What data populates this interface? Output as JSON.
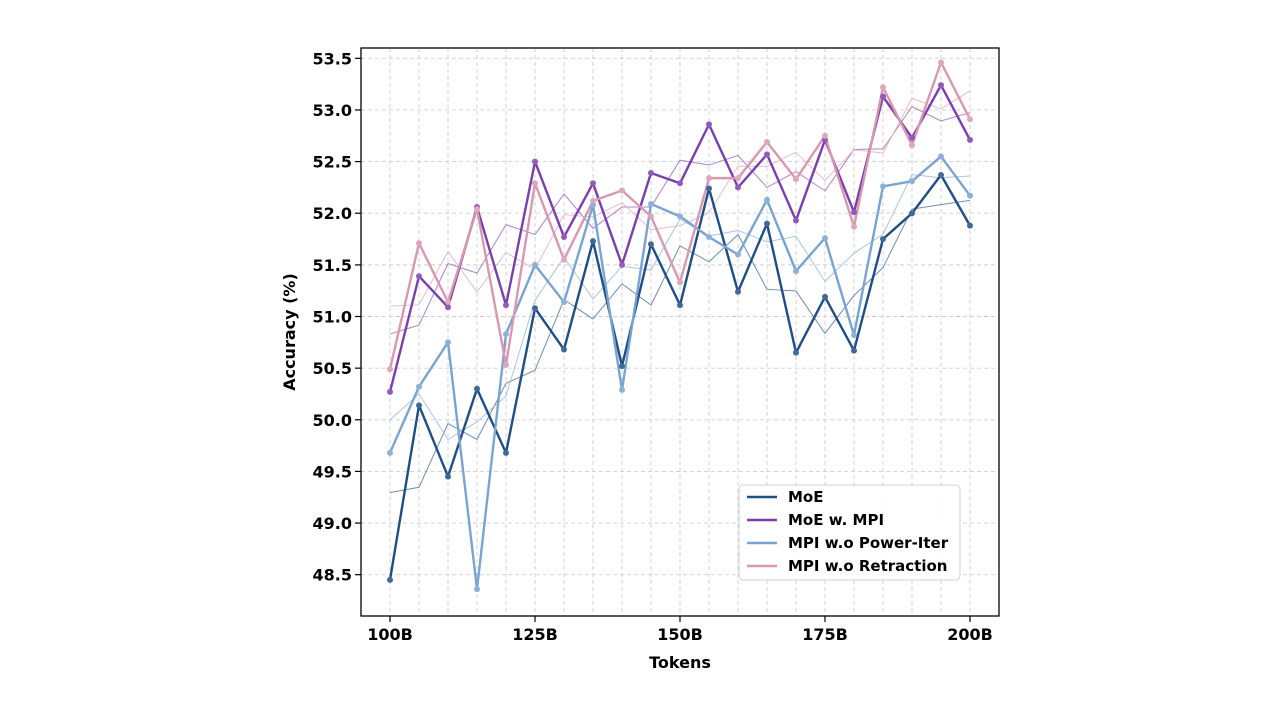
{
  "chart_data": {
    "type": "line",
    "xlabel": "Tokens",
    "ylabel": "Accuracy (%)",
    "x": [
      100,
      105,
      110,
      115,
      120,
      125,
      130,
      135,
      140,
      145,
      150,
      155,
      160,
      165,
      170,
      175,
      180,
      185,
      190,
      195,
      200
    ],
    "xlim": [
      95,
      205
    ],
    "ylim": [
      48.1,
      53.6
    ],
    "x_ticks": [
      100,
      125,
      150,
      175,
      200
    ],
    "x_tick_labels": [
      "100B",
      "125B",
      "150B",
      "175B",
      "200B"
    ],
    "y_ticks": [
      48.5,
      49.0,
      49.5,
      50.0,
      50.5,
      51.0,
      51.5,
      52.0,
      52.5,
      53.0,
      53.5
    ],
    "y_tick_labels": [
      "48.5",
      "49.0",
      "49.5",
      "50.0",
      "50.5",
      "51.0",
      "51.5",
      "52.0",
      "52.5",
      "53.0",
      "53.5"
    ],
    "grid": true,
    "legend_position": "lower-right",
    "series": [
      {
        "name": "MoE",
        "color": "#1f4e85",
        "values": [
          48.45,
          50.14,
          49.45,
          50.3,
          49.68,
          51.08,
          50.68,
          51.73,
          50.52,
          51.7,
          51.11,
          52.24,
          51.24,
          51.9,
          50.65,
          51.19,
          50.67,
          51.75,
          52.0,
          52.37,
          51.88
        ]
      },
      {
        "name": "MoE w. MPI",
        "color": "#7b3fad",
        "values": [
          50.27,
          51.39,
          51.09,
          52.06,
          51.11,
          52.5,
          51.77,
          52.29,
          51.5,
          52.39,
          52.29,
          52.86,
          52.25,
          52.57,
          51.93,
          52.71,
          52.01,
          53.13,
          52.73,
          53.24,
          52.71
        ]
      },
      {
        "name": "MPI w.o Power-Iter",
        "color": "#7aa4cf",
        "values": [
          49.68,
          50.32,
          50.75,
          48.36,
          50.83,
          51.5,
          51.14,
          52.08,
          50.29,
          52.09,
          51.97,
          51.77,
          51.6,
          52.13,
          51.44,
          51.76,
          50.82,
          52.26,
          52.31,
          52.55,
          52.17
        ]
      },
      {
        "name": "MPI w.o Retraction",
        "color": "#d898b0",
        "values": [
          50.49,
          51.71,
          51.14,
          52.04,
          50.53,
          52.29,
          51.55,
          52.12,
          52.22,
          51.97,
          51.33,
          52.34,
          52.34,
          52.69,
          52.33,
          52.75,
          51.87,
          53.22,
          52.66,
          53.46,
          52.91
        ]
      }
    ]
  }
}
